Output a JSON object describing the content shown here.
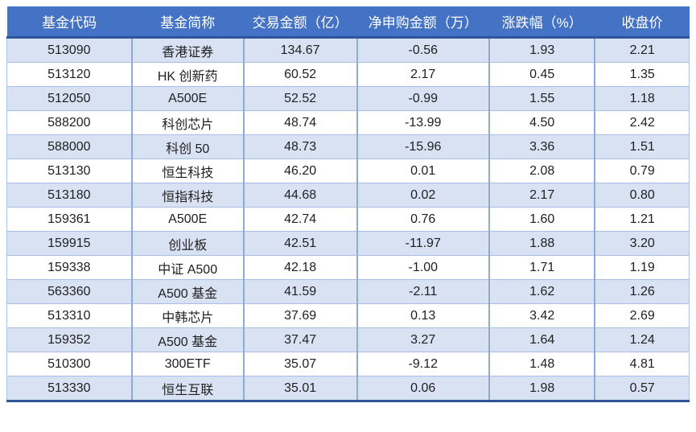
{
  "colors": {
    "header_bg": "#4472c4",
    "header_text": "#ffffff",
    "accent_line": "#2e5597",
    "row_alt_bg": "#d9e2f3",
    "row_bg": "#ffffff",
    "grid_vertical": "#8eaadb",
    "grid_horizontal": "#a9bee6",
    "cell_text": "#1f1f1f"
  },
  "table": {
    "columns": [
      {
        "key": "code",
        "label": "基金代码"
      },
      {
        "key": "name",
        "label": "基金简称"
      },
      {
        "key": "amount",
        "label": "交易金额（亿）"
      },
      {
        "key": "net",
        "label": "净申购金额（万）"
      },
      {
        "key": "change",
        "label": "涨跌幅（%）"
      },
      {
        "key": "close",
        "label": "收盘价"
      }
    ],
    "rows": [
      [
        "513090",
        "香港证券",
        "134.67",
        "-0.56",
        "1.93",
        "2.21"
      ],
      [
        "513120",
        "HK 创新药",
        "60.52",
        "2.17",
        "0.45",
        "1.35"
      ],
      [
        "512050",
        "A500E",
        "52.52",
        "-0.99",
        "1.55",
        "1.18"
      ],
      [
        "588200",
        "科创芯片",
        "48.74",
        "-13.99",
        "4.50",
        "2.42"
      ],
      [
        "588000",
        "科创 50",
        "48.73",
        "-15.96",
        "3.36",
        "1.51"
      ],
      [
        "513130",
        "恒生科技",
        "46.20",
        "0.01",
        "2.08",
        "0.79"
      ],
      [
        "513180",
        "恒指科技",
        "44.68",
        "0.02",
        "2.17",
        "0.80"
      ],
      [
        "159361",
        "A500E",
        "42.74",
        "0.76",
        "1.60",
        "1.21"
      ],
      [
        "159915",
        "创业板",
        "42.51",
        "-11.97",
        "1.88",
        "3.20"
      ],
      [
        "159338",
        "中证 A500",
        "42.18",
        "-1.00",
        "1.71",
        "1.19"
      ],
      [
        "563360",
        "A500 基金",
        "41.59",
        "-2.11",
        "1.62",
        "1.26"
      ],
      [
        "513310",
        "中韩芯片",
        "37.69",
        "0.13",
        "3.42",
        "2.69"
      ],
      [
        "159352",
        "A500 基金",
        "37.47",
        "3.27",
        "1.64",
        "1.24"
      ],
      [
        "510300",
        "300ETF",
        "35.07",
        "-9.12",
        "1.48",
        "4.81"
      ],
      [
        "513330",
        "恒生互联",
        "35.01",
        "0.06",
        "1.98",
        "0.57"
      ]
    ]
  }
}
